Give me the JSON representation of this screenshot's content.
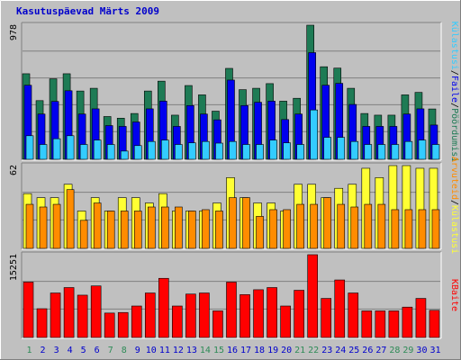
{
  "title": "Kasutuspäevad Märts 2009",
  "colors": {
    "background": "#C0C0C0",
    "frame_dark": "#808080",
    "frame_light": "#FFFFFF",
    "title_color": "#0000CC",
    "weekday_label": "#0000CC",
    "weekend_label": "#2E8B57",
    "visits": "#1E7B55",
    "pages": "#0000EE",
    "files": "#33CCFF",
    "unique_sites": "#FFFF33",
    "hits": "#FF8C00",
    "kbytes": "#FF0000"
  },
  "chart_data": [
    {
      "type": "bar",
      "panel": "top",
      "y_max_label": "978",
      "ylim": [
        0,
        978
      ],
      "grid": true,
      "legend": {
        "placement": "right-vertical",
        "entries": [
          "Külastusi",
          "/",
          "Faile",
          "/",
          "Pöördumisi"
        ]
      },
      "categories": [
        "1",
        "2",
        "3",
        "4",
        "5",
        "6",
        "7",
        "8",
        "9",
        "10",
        "11",
        "12",
        "13",
        "14",
        "15",
        "16",
        "17",
        "18",
        "19",
        "20",
        "21",
        "22",
        "23",
        "24",
        "25",
        "26",
        "27",
        "28",
        "29",
        "30",
        "31"
      ],
      "series": [
        {
          "name": "Pöördumisi",
          "values": [
            624,
            428,
            587,
            624,
            498,
            518,
            312,
            300,
            334,
            498,
            570,
            322,
            538,
            470,
            351,
            663,
            508,
            518,
            552,
            424,
            445,
            978,
            675,
            665,
            518,
            334,
            322,
            322,
            470,
            488,
            367
          ]
        },
        {
          "name": "Faile",
          "values": [
            540,
            330,
            422,
            500,
            330,
            368,
            246,
            240,
            272,
            368,
            424,
            240,
            392,
            330,
            288,
            578,
            392,
            416,
            424,
            290,
            330,
            778,
            540,
            554,
            400,
            240,
            240,
            240,
            330,
            368,
            250
          ]
        },
        {
          "name": "Külastusi",
          "values": [
            172,
            108,
            150,
            172,
            108,
            140,
            108,
            60,
            100,
            130,
            140,
            108,
            120,
            130,
            118,
            130,
            108,
            108,
            140,
            120,
            108,
            360,
            160,
            160,
            130,
            108,
            108,
            108,
            130,
            140,
            108
          ]
        }
      ]
    },
    {
      "type": "bar",
      "panel": "middle",
      "y_max_label": "62",
      "ylim": [
        0,
        62
      ],
      "grid": true,
      "legend": {
        "placement": "right-vertical",
        "entries": [
          "Arvuteid",
          "/",
          "Külastusi"
        ]
      },
      "categories": [
        "1",
        "2",
        "3",
        "4",
        "5",
        "6",
        "7",
        "8",
        "9",
        "10",
        "11",
        "12",
        "13",
        "14",
        "15",
        "16",
        "17",
        "18",
        "19",
        "20",
        "21",
        "22",
        "23",
        "24",
        "25",
        "26",
        "27",
        "28",
        "29",
        "30",
        "31"
      ],
      "series": [
        {
          "name": "Külastusi",
          "values": [
            41,
            38,
            38,
            48,
            28,
            38,
            28,
            38,
            38,
            34,
            41,
            28,
            28,
            28,
            34,
            53,
            38,
            34,
            34,
            28,
            48,
            48,
            38,
            45,
            48,
            60,
            53,
            62,
            62,
            60,
            60
          ]
        },
        {
          "name": "Arvuteid",
          "values": [
            33,
            31,
            33,
            44,
            21,
            34,
            28,
            28,
            28,
            31,
            31,
            31,
            28,
            29,
            28,
            38,
            38,
            24,
            29,
            29,
            33,
            33,
            38,
            33,
            31,
            33,
            33,
            29,
            29,
            29,
            29
          ]
        }
      ]
    },
    {
      "type": "bar",
      "panel": "bottom",
      "y_max_label": "15251",
      "ylim": [
        0,
        15251
      ],
      "grid": true,
      "legend": {
        "placement": "right-vertical",
        "entries": [
          "KBaite"
        ]
      },
      "categories": [
        "1",
        "2",
        "3",
        "4",
        "5",
        "6",
        "7",
        "8",
        "9",
        "10",
        "11",
        "12",
        "13",
        "14",
        "15",
        "16",
        "17",
        "18",
        "19",
        "20",
        "21",
        "22",
        "23",
        "24",
        "25",
        "26",
        "27",
        "28",
        "29",
        "30",
        "31"
      ],
      "series": [
        {
          "name": "KBaite",
          "values": [
            10200,
            5300,
            8200,
            9200,
            7800,
            9500,
            4500,
            4600,
            5800,
            8200,
            10900,
            5800,
            8000,
            8200,
            4900,
            10200,
            7900,
            8800,
            9200,
            5800,
            8700,
            15251,
            7200,
            10600,
            8200,
            4900,
            4900,
            4900,
            5600,
            7200,
            5000
          ]
        }
      ]
    }
  ],
  "x_labels": [
    "1",
    "2",
    "3",
    "4",
    "5",
    "6",
    "7",
    "8",
    "9",
    "10",
    "11",
    "12",
    "13",
    "14",
    "15",
    "16",
    "17",
    "18",
    "19",
    "20",
    "21",
    "22",
    "23",
    "24",
    "25",
    "26",
    "27",
    "28",
    "29",
    "30",
    "31"
  ],
  "weekend_days": [
    1,
    7,
    8,
    14,
    15,
    21,
    22,
    28,
    29
  ]
}
